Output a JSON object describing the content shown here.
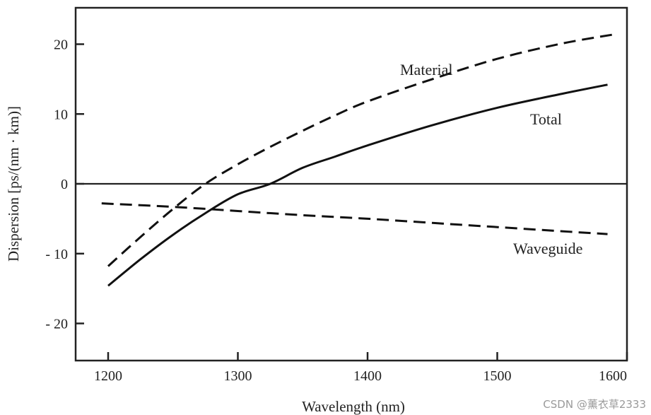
{
  "chart_data": {
    "type": "line",
    "title": "",
    "xlabel": "Wavelength (nm)",
    "ylabel": "Dispersion [ps/(nm · km)]",
    "xlim": [
      1180,
      1600
    ],
    "ylim": [
      -25,
      25
    ],
    "xticks": [
      1200,
      1300,
      1400,
      1500,
      1600
    ],
    "xtick_labels": [
      "1200",
      "1300",
      "1400",
      "1500",
      "1600"
    ],
    "yticks": [
      20,
      10,
      0,
      -10,
      -20
    ],
    "ytick_labels": [
      "20",
      "10",
      "0",
      "- 10",
      "- 20"
    ],
    "zero_line": 0,
    "grid": false,
    "series": [
      {
        "name": "Material",
        "style": "dashed",
        "x": [
          1200,
          1225,
          1250,
          1275,
          1300,
          1325,
          1350,
          1375,
          1400,
          1450,
          1500,
          1550,
          1590
        ],
        "y": [
          -11.8,
          -7.6,
          -3.6,
          0.0,
          2.8,
          5.3,
          7.6,
          9.8,
          11.8,
          15.0,
          17.9,
          20.1,
          21.4
        ]
      },
      {
        "name": "Total",
        "style": "solid",
        "x": [
          1200,
          1225,
          1250,
          1275,
          1300,
          1325,
          1350,
          1375,
          1400,
          1450,
          1500,
          1550,
          1585
        ],
        "y": [
          -14.6,
          -10.8,
          -7.3,
          -4.2,
          -1.5,
          0.0,
          2.3,
          3.9,
          5.5,
          8.4,
          10.9,
          12.9,
          14.2
        ]
      },
      {
        "name": "Waveguide",
        "style": "dashed",
        "x": [
          1195,
          1250,
          1300,
          1350,
          1400,
          1450,
          1500,
          1550,
          1585
        ],
        "y": [
          -2.8,
          -3.3,
          -3.9,
          -4.5,
          -5.0,
          -5.6,
          -6.2,
          -6.8,
          -7.2
        ]
      }
    ],
    "annotations": [
      {
        "text": "Material",
        "series": "Material"
      },
      {
        "text": "Total",
        "series": "Total"
      },
      {
        "text": "Waveguide",
        "series": "Waveguide"
      }
    ]
  },
  "watermark": "CSDN @薰衣草2333"
}
